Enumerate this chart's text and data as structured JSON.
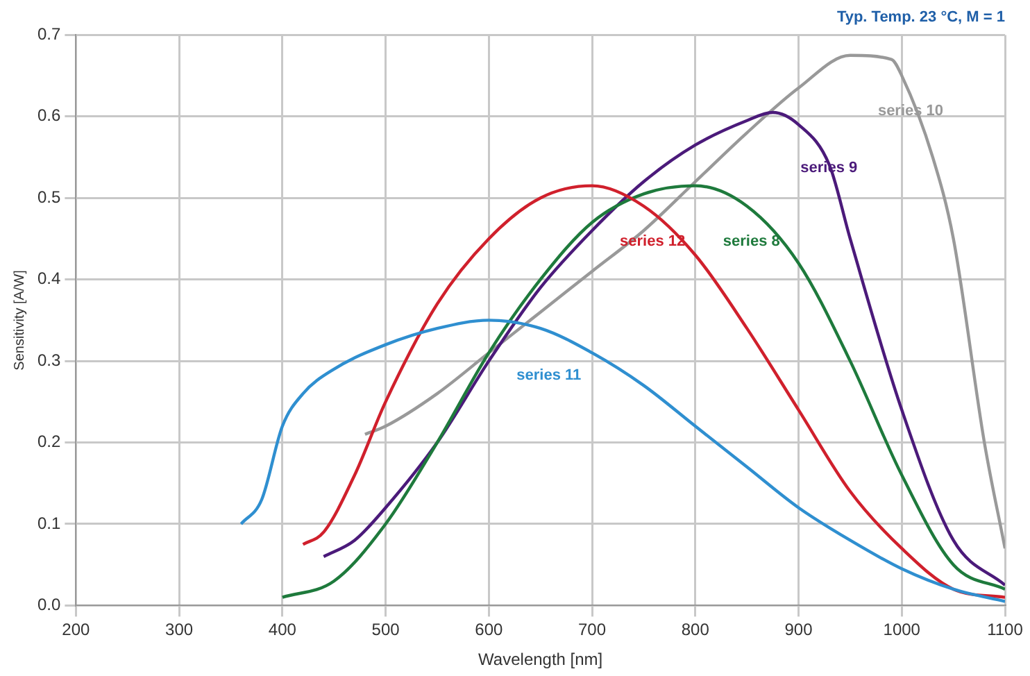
{
  "chart_data": {
    "type": "line",
    "title": "Typ. Temp. 23 °C, M = 1",
    "xlabel": "Wavelength [nm]",
    "ylabel": "Sensitivity [A/W]",
    "xlim": [
      200,
      1100
    ],
    "xticks": [
      200,
      300,
      400,
      500,
      600,
      700,
      800,
      900,
      1000,
      1100
    ],
    "ylim": [
      0,
      0.7
    ],
    "yticks": [
      {
        "value": 0,
        "label": "0.0"
      },
      0.1,
      0.2,
      0.3,
      0.4,
      0.5,
      0.6,
      0.7
    ],
    "grid": true,
    "legend": false,
    "marker": "none",
    "line_style": "solid",
    "series": [
      {
        "name": "series 11",
        "color": "#2f8fd0",
        "x": [
          360,
          380,
          400,
          420,
          450,
          500,
          550,
          600,
          650,
          700,
          750,
          800,
          850,
          900,
          950,
          1000,
          1050,
          1100
        ],
        "values": [
          0.1,
          0.13,
          0.22,
          0.26,
          0.29,
          0.32,
          0.34,
          0.35,
          0.34,
          0.31,
          0.27,
          0.22,
          0.17,
          0.12,
          0.08,
          0.045,
          0.02,
          0.005
        ]
      },
      {
        "name": "series 12",
        "color": "#d0202c",
        "x": [
          420,
          440,
          470,
          500,
          550,
          600,
          650,
          700,
          750,
          800,
          850,
          900,
          950,
          1000,
          1050,
          1100
        ],
        "values": [
          0.075,
          0.09,
          0.16,
          0.25,
          0.37,
          0.45,
          0.5,
          0.515,
          0.49,
          0.43,
          0.34,
          0.24,
          0.14,
          0.07,
          0.02,
          0.01
        ]
      },
      {
        "name": "series 8",
        "color": "#1e7a3c",
        "x": [
          400,
          450,
          500,
          550,
          600,
          650,
          700,
          750,
          800,
          850,
          900,
          950,
          1000,
          1050,
          1100
        ],
        "values": [
          0.01,
          0.03,
          0.1,
          0.2,
          0.31,
          0.4,
          0.47,
          0.505,
          0.515,
          0.49,
          0.42,
          0.3,
          0.16,
          0.05,
          0.02
        ]
      },
      {
        "name": "series 9",
        "color": "#4b1a7a",
        "x": [
          440,
          470,
          500,
          550,
          600,
          650,
          700,
          750,
          800,
          850,
          875,
          900,
          930,
          950,
          1000,
          1050,
          1100
        ],
        "values": [
          0.06,
          0.08,
          0.12,
          0.2,
          0.3,
          0.39,
          0.46,
          0.52,
          0.565,
          0.595,
          0.605,
          0.59,
          0.54,
          0.45,
          0.24,
          0.08,
          0.025
        ]
      },
      {
        "name": "series 10",
        "color": "#999999",
        "x": [
          480,
          500,
          550,
          600,
          650,
          700,
          750,
          800,
          850,
          900,
          950,
          990,
          1000,
          1030,
          1050,
          1080,
          1100
        ],
        "values": [
          0.21,
          0.22,
          0.26,
          0.31,
          0.36,
          0.41,
          0.46,
          0.52,
          0.58,
          0.635,
          0.675,
          0.67,
          0.65,
          0.55,
          0.45,
          0.2,
          0.07
        ]
      }
    ]
  }
}
